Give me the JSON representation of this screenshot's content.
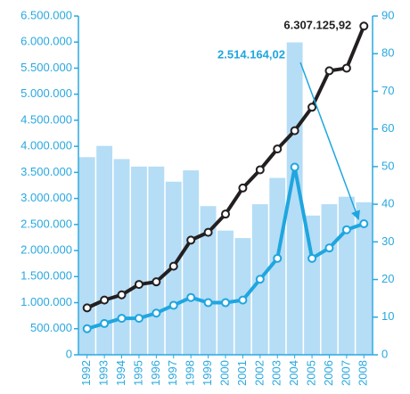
{
  "chart_data": {
    "type": "bar-line",
    "categories": [
      "1992",
      "1993",
      "1994",
      "1995",
      "1996",
      "1997",
      "1998",
      "1999",
      "2000",
      "2001",
      "2002",
      "2003",
      "2004",
      "2005",
      "2006",
      "2007",
      "2008"
    ],
    "series": [
      {
        "kind": "bar",
        "axis": "y2",
        "color": "#b5ddf5",
        "values": [
          52.5,
          55.5,
          52,
          50,
          50,
          46,
          49,
          39.5,
          33,
          31,
          40,
          47,
          83,
          37,
          40,
          42,
          40.5
        ]
      },
      {
        "kind": "line",
        "color": "#231f20",
        "values": [
          900000,
          1050000,
          1150000,
          1350000,
          1400000,
          1700000,
          2200000,
          2350000,
          2700000,
          3200000,
          3550000,
          3950000,
          4300000,
          4750000,
          5450000,
          5500000,
          6307125.92
        ],
        "value_labels": [
          null,
          null,
          null,
          null,
          null,
          null,
          null,
          null,
          null,
          null,
          null,
          null,
          null,
          null,
          null,
          null,
          "6.307.125,92"
        ]
      },
      {
        "kind": "line",
        "color": "#1fa6e0",
        "values": [
          500000,
          600000,
          700000,
          700000,
          800000,
          950000,
          1100000,
          1000000,
          1000000,
          1050000,
          1450000,
          1850000,
          3600000,
          1850000,
          2050000,
          2400000,
          2514164.02
        ],
        "value_labels": [
          null,
          null,
          null,
          null,
          null,
          null,
          null,
          null,
          null,
          null,
          null,
          null,
          null,
          null,
          null,
          null,
          "2.514.164,02"
        ]
      }
    ],
    "ylim": [
      0,
      6500000
    ],
    "yticks": [
      0,
      {
        "value": 500000,
        "label": "500.000"
      },
      {
        "value": 1000000,
        "label": "1.000.000"
      },
      {
        "value": 1500000,
        "label": "1.500.000"
      },
      {
        "value": 2000000,
        "label": "2.000.000"
      },
      {
        "value": 2500000,
        "label": "2.500.000"
      },
      {
        "value": 3000000,
        "label": "3.000.000"
      },
      {
        "value": 3500000,
        "label": "3.500.000"
      },
      {
        "value": 4000000,
        "label": "4.000.000"
      },
      {
        "value": 4500000,
        "label": "4.500.000"
      },
      {
        "value": 5000000,
        "label": "5.000.000"
      },
      {
        "value": 5500000,
        "label": "5.500.000"
      },
      {
        "value": 6000000,
        "label": "6.000.000"
      },
      {
        "value": 6500000,
        "label": "6.500.000"
      }
    ],
    "y2lim": [
      0,
      90
    ],
    "y2ticks": [
      0,
      10,
      20,
      30,
      40,
      50,
      60,
      70,
      80,
      90
    ],
    "axis_color": "#29a8e0"
  }
}
